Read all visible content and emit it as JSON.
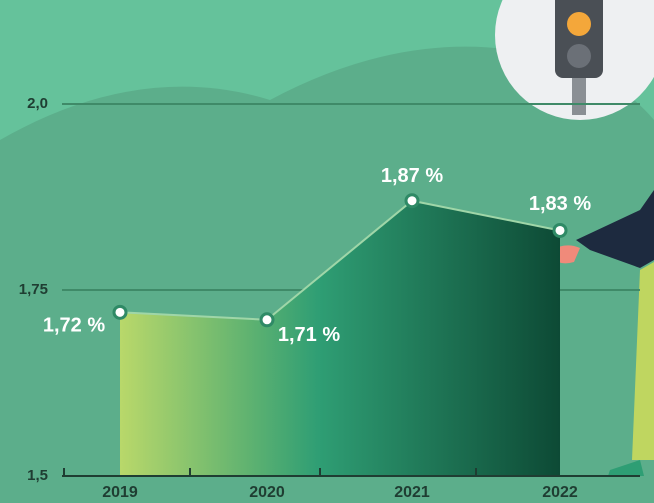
{
  "chart_data": {
    "type": "area",
    "categories": [
      "2019",
      "2020",
      "2021",
      "2022"
    ],
    "values": [
      1.72,
      1.71,
      1.87,
      1.83
    ],
    "value_labels": [
      "1,72 %",
      "1,71 %",
      "1,87 %",
      "1,83 %"
    ],
    "ylim": [
      1.5,
      2.0
    ],
    "yticks": [
      {
        "value": 1.5,
        "label": "1,5"
      },
      {
        "value": 1.75,
        "label": "1,75"
      },
      {
        "value": 2.0,
        "label": "2,0"
      }
    ],
    "grid": true
  }
}
